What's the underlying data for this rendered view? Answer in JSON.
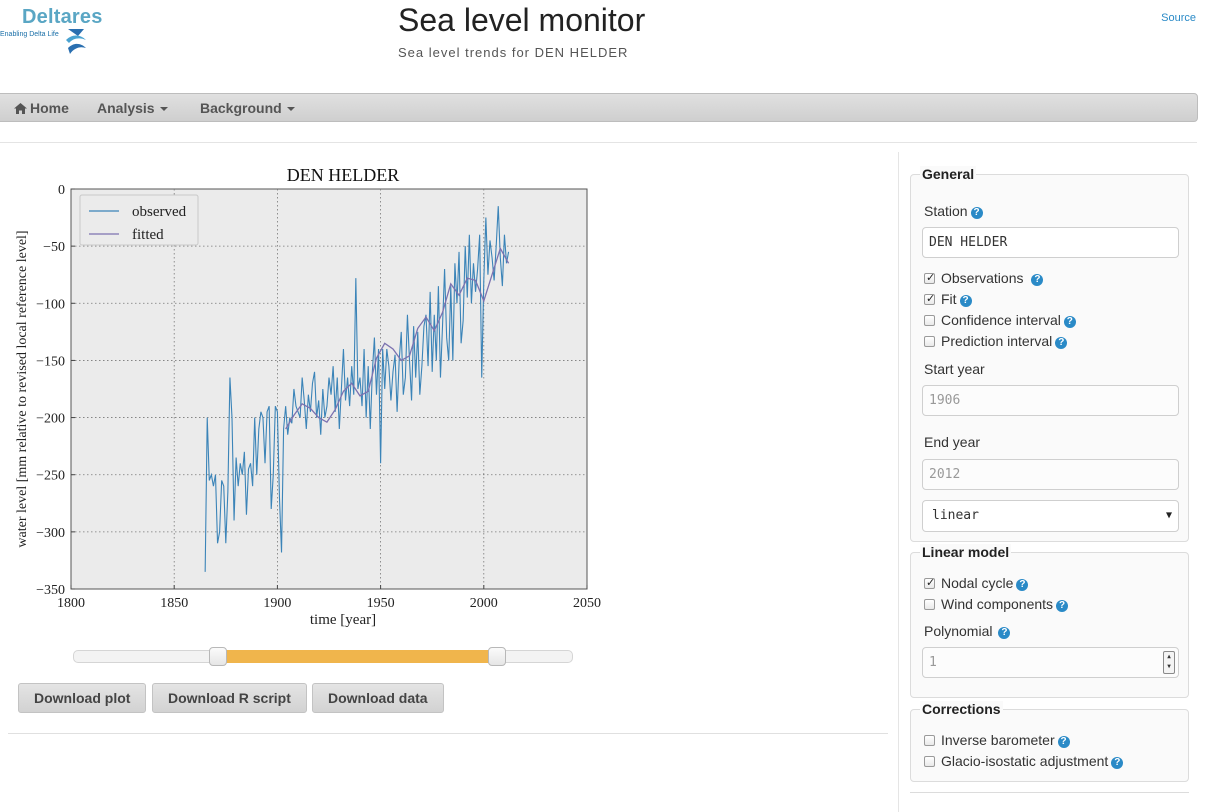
{
  "header": {
    "logo_text": "Deltares",
    "logo_tagline": "Enabling Delta Life",
    "title": "Sea level monitor",
    "subtitle": "Sea level trends for DEN HELDER",
    "source_link": "Source"
  },
  "nav": {
    "home": "Home",
    "analysis": "Analysis",
    "background": "Background"
  },
  "chart_data": {
    "type": "line",
    "title": "DEN HELDER",
    "xlabel": "time [year]",
    "ylabel": "water level [mm relative to revised local reference level]",
    "xlim": [
      1800,
      2050
    ],
    "ylim": [
      -350,
      0
    ],
    "xticks": [
      1800,
      1850,
      1900,
      1950,
      2000,
      2050
    ],
    "yticks": [
      0,
      -50,
      -100,
      -150,
      -200,
      -250,
      -300,
      -350
    ],
    "grid": true,
    "legend_position": "top-left",
    "series": [
      {
        "name": "observed",
        "color": "#3b84b8",
        "x": [
          1865,
          1866,
          1867,
          1868,
          1869,
          1870,
          1871,
          1872,
          1873,
          1874,
          1875,
          1876,
          1877,
          1878,
          1879,
          1880,
          1881,
          1882,
          1883,
          1884,
          1885,
          1886,
          1887,
          1888,
          1889,
          1890,
          1891,
          1892,
          1893,
          1894,
          1895,
          1896,
          1897,
          1898,
          1899,
          1900,
          1901,
          1902,
          1903,
          1904,
          1905,
          1906,
          1907,
          1908,
          1909,
          1910,
          1911,
          1912,
          1913,
          1914,
          1915,
          1916,
          1917,
          1918,
          1919,
          1920,
          1921,
          1922,
          1923,
          1924,
          1925,
          1926,
          1927,
          1928,
          1929,
          1930,
          1931,
          1932,
          1933,
          1934,
          1935,
          1936,
          1937,
          1938,
          1939,
          1940,
          1941,
          1942,
          1943,
          1944,
          1945,
          1946,
          1947,
          1948,
          1949,
          1950,
          1951,
          1952,
          1953,
          1954,
          1955,
          1956,
          1957,
          1958,
          1959,
          1960,
          1961,
          1962,
          1963,
          1964,
          1965,
          1966,
          1967,
          1968,
          1969,
          1970,
          1971,
          1972,
          1973,
          1974,
          1975,
          1976,
          1977,
          1978,
          1979,
          1980,
          1981,
          1982,
          1983,
          1984,
          1985,
          1986,
          1987,
          1988,
          1989,
          1990,
          1991,
          1992,
          1993,
          1994,
          1995,
          1996,
          1997,
          1998,
          1999,
          2000,
          2001,
          2002,
          2003,
          2004,
          2005,
          2006,
          2007,
          2008,
          2009,
          2010,
          2011,
          2012
        ],
        "y": [
          -335,
          -200,
          -255,
          -250,
          -260,
          -250,
          -310,
          -300,
          -255,
          -260,
          -310,
          -265,
          -165,
          -200,
          -290,
          -235,
          -260,
          -240,
          -250,
          -230,
          -285,
          -245,
          -240,
          -260,
          -200,
          -250,
          -210,
          -195,
          -200,
          -240,
          -195,
          -190,
          -280,
          -250,
          -190,
          -195,
          -270,
          -318,
          -210,
          -190,
          -215,
          -200,
          -205,
          -175,
          -190,
          -195,
          -200,
          -165,
          -185,
          -210,
          -180,
          -195,
          -170,
          -160,
          -200,
          -185,
          -215,
          -175,
          -200,
          -190,
          -165,
          -180,
          -155,
          -195,
          -165,
          -210,
          -175,
          -140,
          -185,
          -165,
          -190,
          -155,
          -180,
          -78,
          -175,
          -165,
          -190,
          -140,
          -200,
          -155,
          -210,
          -160,
          -130,
          -180,
          -140,
          -240,
          -140,
          -175,
          -140,
          -155,
          -185,
          -160,
          -145,
          -195,
          -150,
          -125,
          -180,
          -165,
          -110,
          -150,
          -185,
          -120,
          -165,
          -125,
          -180,
          -155,
          -120,
          -110,
          -155,
          -90,
          -160,
          -110,
          -150,
          -85,
          -165,
          -120,
          -70,
          -130,
          -150,
          -85,
          -150,
          -65,
          -100,
          -55,
          -135,
          -115,
          -50,
          -95,
          -40,
          -100,
          -65,
          -90,
          -70,
          -40,
          -165,
          -80,
          -25,
          -75,
          -45,
          -60,
          -80,
          -50,
          -15,
          -60,
          -85,
          -40,
          -65,
          -55
        ]
      },
      {
        "name": "fitted",
        "color": "#7c72b0",
        "x": [
          1904,
          1908,
          1912,
          1916,
          1920,
          1924,
          1928,
          1932,
          1936,
          1940,
          1944,
          1948,
          1952,
          1956,
          1960,
          1964,
          1968,
          1972,
          1976,
          1980,
          1984,
          1988,
          1992,
          1996,
          2000,
          2004,
          2008,
          2012
        ],
        "y": [
          -210,
          -198,
          -188,
          -192,
          -200,
          -204,
          -193,
          -177,
          -170,
          -181,
          -177,
          -148,
          -135,
          -140,
          -150,
          -146,
          -122,
          -112,
          -124,
          -108,
          -83,
          -93,
          -78,
          -80,
          -98,
          -75,
          -52,
          -65
        ]
      }
    ]
  },
  "slider": {
    "min": 1865,
    "max": 2012,
    "low": 1906,
    "high": 2012
  },
  "buttons": {
    "download_plot": "Download plot",
    "download_r": "Download R script",
    "download_data": "Download data"
  },
  "general": {
    "legend": "General",
    "station_label": "Station",
    "station_value": "DEN HELDER",
    "observations": "Observations",
    "fit": "Fit",
    "confidence_interval": "Confidence interval",
    "prediction_interval": "Prediction interval",
    "start_year_label": "Start year",
    "start_year_placeholder": "1906",
    "end_year_label": "End year",
    "end_year_placeholder": "2012",
    "model_select": "linear",
    "help_glyph": "?"
  },
  "linear_model": {
    "legend": "Linear model",
    "nodal_cycle": "Nodal cycle",
    "wind_components": "Wind components",
    "polynomial_label": "Polynomial",
    "polynomial_value": "1"
  },
  "corrections": {
    "legend": "Corrections",
    "inverse_barometer": "Inverse barometer",
    "glacio_isostatic": "Glacio-isostatic adjustment"
  },
  "checkbox_state": {
    "observations": true,
    "fit": true,
    "confidence_interval": false,
    "prediction_interval": false,
    "nodal_cycle": true,
    "wind_components": false,
    "inverse_barometer": false,
    "glacio_isostatic": false
  },
  "colors": {
    "accent": "#2a8ac7",
    "slider_range": "#f0b54c",
    "plot_background": "#ebebeb"
  }
}
